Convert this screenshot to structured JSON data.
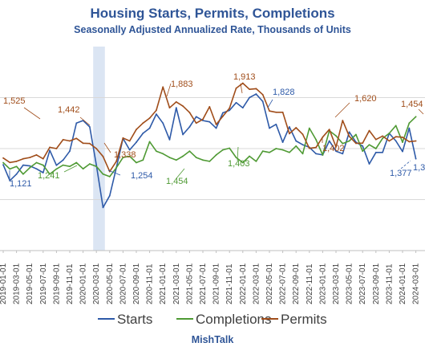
{
  "chart_data": {
    "type": "line",
    "title": "Housing Starts, Permits, Completions",
    "subtitle": "Seasonally Adjusted Annualized Rate, Thousands of Units",
    "source": "MishTalk",
    "ylim": [
      600,
      2200
    ],
    "grid": true,
    "legend_position": "bottom",
    "x": [
      "2019-01-01",
      "2019-02-01",
      "2019-03-01",
      "2019-04-01",
      "2019-05-01",
      "2019-06-01",
      "2019-07-01",
      "2019-08-01",
      "2019-09-01",
      "2019-10-01",
      "2019-11-01",
      "2019-12-01",
      "2020-01-01",
      "2020-02-01",
      "2020-03-01",
      "2020-04-01",
      "2020-05-01",
      "2020-06-01",
      "2020-07-01",
      "2020-08-01",
      "2020-09-01",
      "2020-10-01",
      "2020-11-01",
      "2020-12-01",
      "2021-01-01",
      "2021-02-01",
      "2021-03-01",
      "2021-04-01",
      "2021-05-01",
      "2021-06-01",
      "2021-07-01",
      "2021-08-01",
      "2021-09-01",
      "2021-10-01",
      "2021-11-01",
      "2021-12-01",
      "2022-01-01",
      "2022-02-01",
      "2022-03-01",
      "2022-04-01",
      "2022-05-01",
      "2022-06-01",
      "2022-07-01",
      "2022-08-01",
      "2022-09-01",
      "2022-10-01",
      "2022-11-01",
      "2022-12-01",
      "2023-01-01",
      "2023-02-01",
      "2023-03-01",
      "2023-04-01",
      "2023-05-01",
      "2023-06-01",
      "2023-07-01",
      "2023-08-01",
      "2023-09-01",
      "2023-10-01",
      "2023-11-01",
      "2023-12-01",
      "2024-01-01",
      "2024-02-01",
      "2024-03-01"
    ],
    "x_ticks": [
      "2019-01-01",
      "2019-03-01",
      "2019-05-01",
      "2019-07-01",
      "2019-09-01",
      "2019-11-01",
      "2020-01-01",
      "2020-03-01",
      "2020-05-01",
      "2020-07-01",
      "2020-09-01",
      "2020-11-01",
      "2021-01-01",
      "2021-03-01",
      "2021-05-01",
      "2021-07-01",
      "2021-09-01",
      "2021-11-01",
      "2022-01-01",
      "2022-03-01",
      "2022-05-01",
      "2022-07-01",
      "2022-09-01",
      "2022-11-01",
      "2023-01-01",
      "2023-03-01",
      "2023-05-01",
      "2023-07-01",
      "2023-09-01",
      "2023-11-01",
      "2024-01-01",
      "2024-03-01"
    ],
    "recession_shading": [
      "2020-03-01",
      "2020-05-01"
    ],
    "series": [
      {
        "name": "Starts",
        "color": "#2e5aa8",
        "values": [
          1273,
          1149,
          1200,
          1270,
          1264,
          1241,
          1211,
          1386,
          1269,
          1310,
          1380,
          1600,
          1620,
          1570,
          1270,
          938,
          1030,
          1250,
          1480,
          1390,
          1450,
          1520,
          1560,
          1670,
          1600,
          1470,
          1720,
          1510,
          1570,
          1650,
          1620,
          1610,
          1560,
          1680,
          1700,
          1760,
          1720,
          1800,
          1828,
          1770,
          1560,
          1590,
          1450,
          1570,
          1460,
          1430,
          1410,
          1360,
          1350,
          1460,
          1380,
          1360,
          1530,
          1450,
          1420,
          1280,
          1370,
          1370,
          1520,
          1460,
          1377,
          1560,
          1320
        ]
      },
      {
        "name": "Completions",
        "color": "#4f9a34",
        "values": [
          1290,
          1240,
          1260,
          1200,
          1250,
          1290,
          1270,
          1200,
          1240,
          1270,
          1260,
          1290,
          1241,
          1280,
          1260,
          1200,
          1180,
          1250,
          1330,
          1340,
          1290,
          1310,
          1454,
          1380,
          1360,
          1330,
          1310,
          1340,
          1380,
          1330,
          1310,
          1300,
          1350,
          1390,
          1403,
          1330,
          1290,
          1340,
          1300,
          1380,
          1370,
          1400,
          1390,
          1370,
          1420,
          1360,
          1560,
          1470,
          1350,
          1540,
          1500,
          1440,
          1460,
          1510,
          1380,
          1430,
          1400,
          1480,
          1520,
          1580,
          1450,
          1600,
          1650
        ]
      },
      {
        "name": "Permits",
        "color": "#a04d1a",
        "values": [
          1326,
          1291,
          1300,
          1320,
          1330,
          1350,
          1320,
          1410,
          1400,
          1470,
          1460,
          1480,
          1442,
          1440,
          1400,
          1338,
          1220,
          1300,
          1483,
          1460,
          1550,
          1600,
          1639,
          1700,
          1883,
          1720,
          1766,
          1733,
          1683,
          1600,
          1630,
          1728,
          1589,
          1653,
          1717,
          1873,
          1913,
          1865,
          1870,
          1823,
          1695,
          1685,
          1685,
          1517,
          1564,
          1512,
          1402,
          1409,
          1490,
          1550,
          1413,
          1620,
          1496,
          1441,
          1443,
          1541,
          1471,
          1498,
          1460,
          1493,
          1489,
          1454,
          1460
        ]
      }
    ],
    "annotations": [
      {
        "label": "1,121",
        "series": "Starts",
        "color": "#2e5aa8"
      },
      {
        "label": "1,254",
        "series": "Starts",
        "color": "#2e5aa8"
      },
      {
        "label": "1,828",
        "series": "Starts",
        "color": "#2e5aa8"
      },
      {
        "label": "1,377",
        "series": "Starts",
        "color": "#2e5aa8"
      },
      {
        "label": "1,3",
        "series": "Starts",
        "color": "#2e5aa8"
      },
      {
        "label": "1,241",
        "series": "Completions",
        "color": "#4f9a34"
      },
      {
        "label": "1,454",
        "series": "Completions",
        "color": "#4f9a34"
      },
      {
        "label": "1,403",
        "series": "Completions",
        "color": "#4f9a34"
      },
      {
        "label": "1,525",
        "series": "Permits",
        "color": "#a04d1a"
      },
      {
        "label": "1,442",
        "series": "Permits",
        "color": "#a04d1a"
      },
      {
        "label": "1,338",
        "series": "Permits",
        "color": "#a04d1a"
      },
      {
        "label": "1,883",
        "series": "Permits",
        "color": "#a04d1a"
      },
      {
        "label": "1,913",
        "series": "Permits",
        "color": "#a04d1a"
      },
      {
        "label": "1,402",
        "series": "Permits",
        "color": "#a04d1a"
      },
      {
        "label": "1,620",
        "series": "Permits",
        "color": "#a04d1a"
      },
      {
        "label": "1,454",
        "series": "Permits",
        "color": "#a04d1a"
      }
    ]
  }
}
